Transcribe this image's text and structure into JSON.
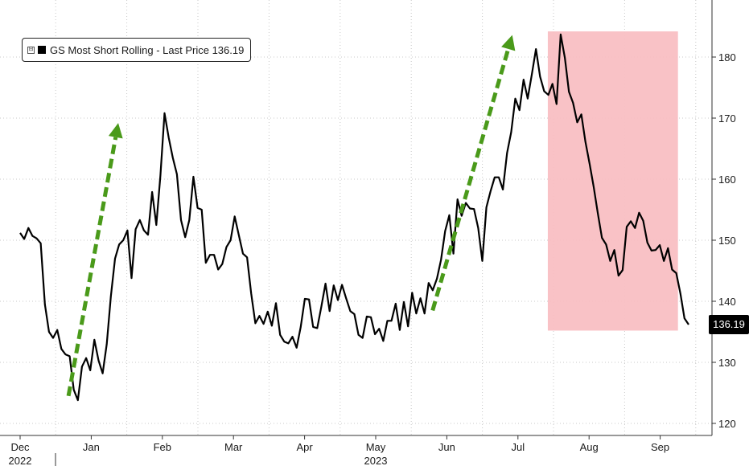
{
  "chart_data": {
    "type": "line",
    "legend": {
      "toggle_symbol": "⊟",
      "label": "GS Most Short Rolling - Last Price 136.19",
      "placement": "top-left"
    },
    "last_price": "136.19",
    "y_axis": {
      "side": "right",
      "ylim": [
        118,
        188
      ],
      "ticks": [
        120,
        130,
        140,
        150,
        160,
        170,
        180
      ]
    },
    "x_axis": {
      "months": [
        "Dec",
        "Jan",
        "Feb",
        "Mar",
        "Apr",
        "May",
        "Jun",
        "Jul",
        "Aug",
        "Sep"
      ],
      "years": [
        {
          "label": "2022",
          "under_month": 0
        },
        {
          "label": "2023",
          "under_month": 5
        }
      ]
    },
    "grid": true,
    "series": [
      {
        "color": "#000000",
        "start_month_index": 0.0,
        "end_month_index": 9.4,
        "values": [
          151.2,
          150.2,
          152.0,
          150.7,
          150.3,
          149.5,
          139.5,
          135.0,
          134.0,
          135.3,
          132.2,
          131.3,
          131.0,
          125.5,
          123.8,
          129.3,
          130.7,
          128.7,
          133.7,
          130.3,
          128.2,
          133.0,
          140.8,
          147.0,
          149.3,
          150.0,
          151.6,
          143.8,
          151.8,
          153.3,
          151.6,
          150.9,
          157.9,
          152.5,
          160.6,
          170.8,
          166.8,
          163.5,
          160.8,
          153.3,
          150.5,
          153.3,
          160.4,
          155.3,
          155.0,
          146.3,
          147.6,
          147.6,
          145.2,
          146.1,
          148.9,
          150.0,
          153.9,
          150.8,
          147.8,
          147.2,
          141.3,
          136.4,
          137.6,
          136.3,
          138.3,
          136.0,
          139.7,
          134.5,
          133.4,
          133.1,
          134.2,
          132.4,
          135.8,
          140.4,
          140.3,
          135.8,
          135.6,
          139.1,
          142.9,
          138.4,
          142.6,
          140.2,
          142.7,
          140.5,
          138.4,
          137.9,
          134.5,
          134.0,
          137.5,
          137.4,
          134.6,
          135.5,
          133.5,
          136.8,
          136.8,
          139.6,
          135.3,
          139.9,
          135.9,
          141.4,
          138.0,
          140.5,
          138.0,
          143.0,
          141.8,
          143.7,
          146.8,
          151.5,
          154.1,
          147.8,
          156.7,
          154.0,
          156.1,
          155.2,
          155.1,
          152.0,
          146.6,
          155.4,
          158.0,
          160.3,
          160.3,
          158.3,
          164.3,
          167.7,
          173.2,
          171.3,
          176.3,
          173.2,
          177.1,
          181.3,
          176.8,
          174.4,
          173.8,
          175.6,
          172.3,
          183.7,
          179.9,
          174.3,
          172.5,
          169.3,
          170.6,
          166.1,
          162.5,
          158.7,
          154.4,
          150.4,
          149.3,
          146.6,
          148.4,
          144.2,
          145.1,
          152.2,
          153.1,
          152.0,
          154.5,
          153.2,
          149.6,
          148.3,
          148.4,
          149.2,
          146.6,
          148.7,
          145.2,
          144.6,
          141.3,
          137.2,
          136.19
        ]
      }
    ],
    "annotations": [
      {
        "kind": "arrow",
        "color": "#4a9a1a",
        "from_month": 0.68,
        "to_month": 1.38,
        "from_value": 124.5,
        "to_value": 169.2
      },
      {
        "kind": "arrow",
        "color": "#4a9a1a",
        "from_month": 5.8,
        "to_month": 6.92,
        "from_value": 138.5,
        "to_value": 183.6
      },
      {
        "kind": "shaded_region",
        "color": "#f9bfc3",
        "from_month": 7.42,
        "to_month": 9.25,
        "from_value": 135.2,
        "to_value": 184.2
      }
    ]
  }
}
